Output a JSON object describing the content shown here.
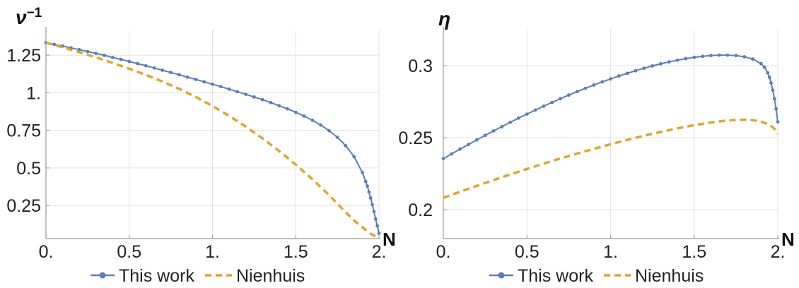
{
  "colors": {
    "this_work": "#5b7fb5",
    "nienhuis": "#e0a430",
    "grid": "#e3e3e3",
    "axis": "#999999"
  },
  "chart_data": [
    {
      "type": "line",
      "ylabel": "ν⁻¹",
      "ylabel_base": "ν",
      "ylabel_sup": "−1",
      "xlabel": "N",
      "xlim": [
        0,
        2
      ],
      "ylim": [
        0.03,
        1.42
      ],
      "xticks": [
        0,
        0.5,
        1,
        1.5,
        2
      ],
      "xtick_labels": [
        "0.",
        "0.5",
        "1.",
        "1.5",
        "2."
      ],
      "yticks": [
        0.25,
        0.5,
        0.75,
        1,
        1.25
      ],
      "ytick_labels": [
        "0.25",
        "0.5",
        "0.75",
        "1.",
        "1.25"
      ],
      "grid": true,
      "legend": "bottom",
      "series": [
        {
          "name": "This work",
          "style": "line-markers",
          "x": [
            0,
            0.05,
            0.1,
            0.15,
            0.2,
            0.25,
            0.3,
            0.35,
            0.4,
            0.45,
            0.5,
            0.55,
            0.6,
            0.65,
            0.7,
            0.75,
            0.8,
            0.85,
            0.9,
            0.95,
            1.0,
            1.05,
            1.1,
            1.15,
            1.2,
            1.25,
            1.3,
            1.35,
            1.4,
            1.45,
            1.5,
            1.55,
            1.6,
            1.65,
            1.7,
            1.75,
            1.8,
            1.85,
            1.9,
            1.92,
            1.93,
            1.94,
            1.95,
            1.96,
            1.97,
            1.98,
            1.99,
            2.0
          ],
          "y": [
            1.333,
            1.322,
            1.311,
            1.299,
            1.287,
            1.274,
            1.262,
            1.249,
            1.235,
            1.222,
            1.208,
            1.194,
            1.18,
            1.165,
            1.15,
            1.135,
            1.12,
            1.104,
            1.089,
            1.073,
            1.057,
            1.041,
            1.024,
            1.007,
            0.99,
            0.972,
            0.954,
            0.935,
            0.914,
            0.893,
            0.87,
            0.845,
            0.817,
            0.785,
            0.748,
            0.704,
            0.648,
            0.575,
            0.47,
            0.41,
            0.38,
            0.34,
            0.3,
            0.255,
            0.21,
            0.16,
            0.115,
            0.065
          ]
        },
        {
          "name": "Nienhuis",
          "style": "dashed",
          "x": [
            0,
            0.1,
            0.2,
            0.3,
            0.4,
            0.5,
            0.6,
            0.7,
            0.8,
            0.9,
            1.0,
            1.1,
            1.2,
            1.3,
            1.4,
            1.5,
            1.6,
            1.7,
            1.8,
            1.85,
            1.9,
            1.93,
            1.95,
            1.97,
            1.99,
            2.0
          ],
          "y": [
            1.333,
            1.302,
            1.27,
            1.236,
            1.199,
            1.16,
            1.119,
            1.075,
            1.026,
            0.972,
            0.912,
            0.846,
            0.775,
            0.697,
            0.613,
            0.522,
            0.425,
            0.32,
            0.205,
            0.15,
            0.105,
            0.08,
            0.062,
            0.05,
            0.04,
            0.035
          ]
        }
      ]
    },
    {
      "type": "line",
      "ylabel": "η",
      "xlabel": "N",
      "xlim": [
        0,
        2
      ],
      "ylim": [
        0.18,
        0.325
      ],
      "xticks": [
        0,
        0.5,
        1,
        1.5,
        2
      ],
      "xtick_labels": [
        "0.",
        "0.5",
        "1.",
        "1.5",
        "2."
      ],
      "yticks": [
        0.2,
        0.25,
        0.3
      ],
      "ytick_labels": [
        "0.2",
        "0.25",
        "0.3"
      ],
      "grid": true,
      "legend": "bottom",
      "series": [
        {
          "name": "This work",
          "style": "line-markers",
          "x": [
            0,
            0.05,
            0.1,
            0.15,
            0.2,
            0.25,
            0.3,
            0.35,
            0.4,
            0.45,
            0.5,
            0.55,
            0.6,
            0.65,
            0.7,
            0.75,
            0.8,
            0.85,
            0.9,
            0.95,
            1.0,
            1.05,
            1.1,
            1.15,
            1.2,
            1.25,
            1.3,
            1.35,
            1.4,
            1.45,
            1.5,
            1.55,
            1.6,
            1.65,
            1.7,
            1.75,
            1.8,
            1.85,
            1.9,
            1.92,
            1.94,
            1.95,
            1.96,
            1.97,
            1.98,
            1.99,
            2.0
          ],
          "y": [
            0.2355,
            0.2388,
            0.2421,
            0.2453,
            0.2485,
            0.2516,
            0.2547,
            0.2577,
            0.2607,
            0.2636,
            0.2664,
            0.2692,
            0.2719,
            0.2745,
            0.2771,
            0.2796,
            0.282,
            0.2843,
            0.2866,
            0.2888,
            0.2908,
            0.2928,
            0.2947,
            0.2965,
            0.2982,
            0.2998,
            0.3013,
            0.3026,
            0.3038,
            0.3049,
            0.3058,
            0.3065,
            0.307,
            0.3073,
            0.3073,
            0.307,
            0.3062,
            0.3046,
            0.3015,
            0.299,
            0.295,
            0.292,
            0.288,
            0.283,
            0.277,
            0.27,
            0.261
          ]
        },
        {
          "name": "Nienhuis",
          "style": "dashed",
          "x": [
            0,
            0.1,
            0.2,
            0.3,
            0.4,
            0.5,
            0.6,
            0.7,
            0.8,
            0.9,
            1.0,
            1.1,
            1.2,
            1.3,
            1.4,
            1.5,
            1.6,
            1.7,
            1.75,
            1.8,
            1.85,
            1.9,
            1.95,
            1.98,
            2.0
          ],
          "y": [
            0.2083,
            0.2125,
            0.2166,
            0.2206,
            0.2245,
            0.2283,
            0.232,
            0.2356,
            0.239,
            0.2423,
            0.2455,
            0.2485,
            0.2514,
            0.254,
            0.2565,
            0.2587,
            0.2606,
            0.262,
            0.2624,
            0.2625,
            0.2622,
            0.2612,
            0.259,
            0.2562,
            0.2525
          ]
        }
      ]
    }
  ]
}
